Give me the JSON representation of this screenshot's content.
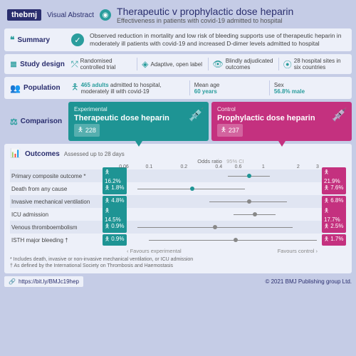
{
  "header": {
    "brand": "thebmj",
    "va": "Visual Abstract",
    "title": "Therapeutic v prophylactic dose heparin",
    "subtitle": "Effectiveness in patients with covid-19 admitted to hospital"
  },
  "summary": {
    "label": "Summary",
    "text": "Observed reduction in mortality and low risk of bleeding supports use of therapeutic heparin in moderately ill patients with covid-19 and increased D-dimer levels admitted to hospital"
  },
  "design": {
    "label": "Study design",
    "items": [
      "Randomised controlled trial",
      "Adaptive, open label",
      "Blindly adjudicated outcomes",
      "28 hospital sites in six countries"
    ]
  },
  "pop": {
    "label": "Population",
    "n": "465 adults",
    "desc": " admitted to hospital, moderately ill with covid-19",
    "age_l": "Mean age",
    "age": "60 years",
    "sex_l": "Sex",
    "sex": "56.8% male"
  },
  "comp": {
    "label": "Comparison",
    "exp": {
      "tag": "Experimental",
      "name": "Therapeutic dose heparin",
      "n": "228",
      "color": "#1e9494"
    },
    "ctrl": {
      "tag": "Control",
      "name": "Prophylactic dose heparin",
      "n": "237",
      "color": "#c4317f"
    }
  },
  "outcomes": {
    "label": "Outcomes",
    "sub": "Assessed up to 28 days",
    "axis_label": "Odds ratio",
    "ci_label": "95% CI",
    "ticks": [
      {
        "v": 0.06,
        "p": 0
      },
      {
        "v": 0.1,
        "p": 13
      },
      {
        "v": 0.2,
        "p": 31
      },
      {
        "v": 0.4,
        "p": 49
      },
      {
        "v": 0.6,
        "p": 59
      },
      {
        "v": 1,
        "p": 72
      },
      {
        "v": 2,
        "p": 90
      },
      {
        "v": 3,
        "p": 100
      }
    ],
    "rows": [
      {
        "name": "Primary composite outcome *",
        "e": "16.2%",
        "c": "21.9%",
        "or": 0.69,
        "lo": 0.43,
        "hi": 1.1,
        "color": "#1e9494",
        "pl": 52,
        "pw": 22,
        "pp": 63
      },
      {
        "name": "Death from any cause",
        "e": "1.8%",
        "c": "7.6%",
        "or": 0.22,
        "lo": 0.07,
        "hi": 0.65,
        "color": "#1e9494",
        "pl": 4,
        "pw": 57,
        "pp": 33
      },
      {
        "name": "Invasive mechanical ventilation",
        "e": "4.8%",
        "c": "6.8%",
        "or": 0.69,
        "lo": 0.32,
        "hi": 1.55,
        "color": "#888",
        "pl": 42,
        "pw": 41,
        "pp": 63
      },
      {
        "name": "ICU admission",
        "e": "14.5%",
        "c": "17.7%",
        "or": 0.79,
        "lo": 0.5,
        "hi": 1.23,
        "color": "#888",
        "pl": 55,
        "pw": 22,
        "pp": 66
      },
      {
        "name": "Venous thromboembolism",
        "e": "0.9%",
        "c": "2.5%",
        "or": 0.34,
        "lo": 0.07,
        "hi": 1.71,
        "color": "#888",
        "pl": 4,
        "pw": 82,
        "pp": 45
      },
      {
        "name": "ISTH major bleeding †",
        "e": "0.9%",
        "c": "1.7%",
        "or": 0.52,
        "lo": 0.09,
        "hi": 2.85,
        "color": "#888",
        "pl": 10,
        "pw": 89,
        "pp": 56
      }
    ],
    "fav_e": "‹ Favours experimental",
    "fav_c": "Favours control ›",
    "note1": "* Includes death, invasive or non-invasive mechanical ventilation, or ICU admission",
    "note2": "† As defined by the International Society on Thrombosis and Haemostasis"
  },
  "footer": {
    "url": "https://bit.ly/BMJc19hep",
    "copy": "© 2021 BMJ Publishing group Ltd."
  }
}
